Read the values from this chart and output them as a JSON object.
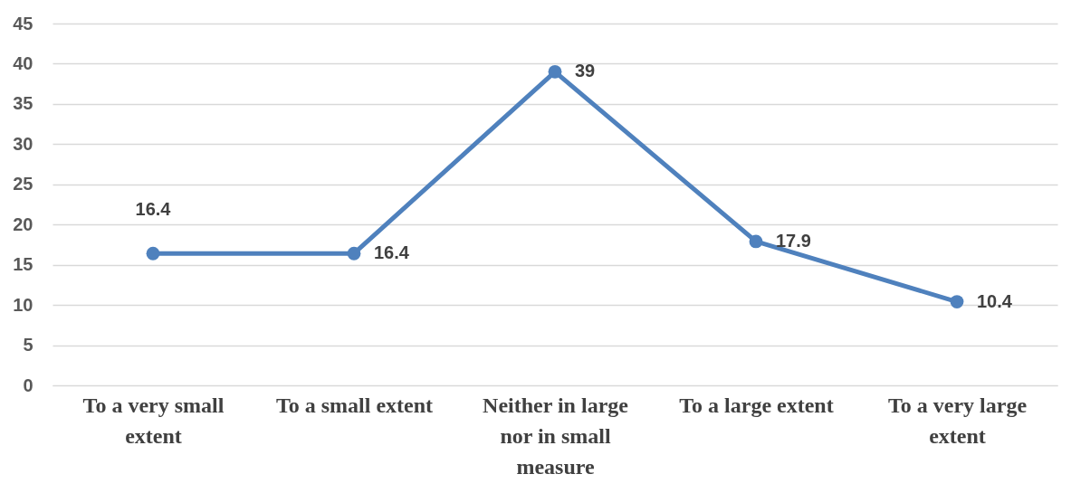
{
  "chart_data": {
    "type": "line",
    "categories": [
      "To a very small extent",
      "To a small extent",
      "Neither in large nor in small measure",
      "To a large extent",
      "To a very large extent"
    ],
    "series": [
      {
        "color": "#4f81bd",
        "values": [
          16.4,
          16.4,
          39,
          17.9,
          10.4
        ]
      }
    ],
    "ylim": [
      0,
      45
    ],
    "yticks": [
      0,
      5,
      10,
      15,
      20,
      25,
      30,
      35,
      40,
      45
    ],
    "grid": "y",
    "legend": false,
    "marker": "circle",
    "line_style": "solid",
    "data_labels": true
  }
}
